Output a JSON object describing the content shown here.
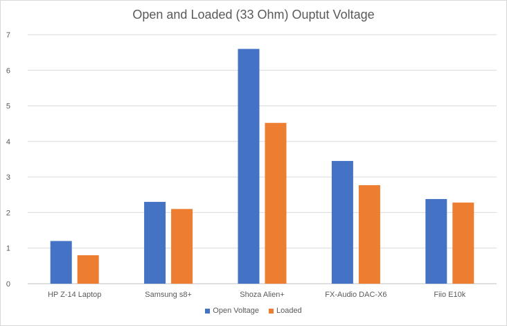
{
  "chart_data": {
    "type": "bar",
    "title": "Open and Loaded (33 Ohm) Ouptut Voltage",
    "categories": [
      "HP Z-14 Laptop",
      "Samsung s8+",
      "Shoza Alien+",
      "FX-Audio DAC-X6",
      "Fiio E10k"
    ],
    "series": [
      {
        "name": "Open Voltage",
        "values": [
          1.2,
          2.3,
          6.6,
          3.45,
          2.38
        ],
        "color": "#4472c4"
      },
      {
        "name": "Loaded",
        "values": [
          0.8,
          2.1,
          4.52,
          2.77,
          2.28
        ],
        "color": "#ed7d31"
      }
    ],
    "ylim": [
      0,
      7
    ],
    "yticks": [
      "0",
      "1",
      "2",
      "3",
      "4",
      "5",
      "6",
      "7"
    ],
    "grid": true,
    "legend_position": "bottom"
  }
}
